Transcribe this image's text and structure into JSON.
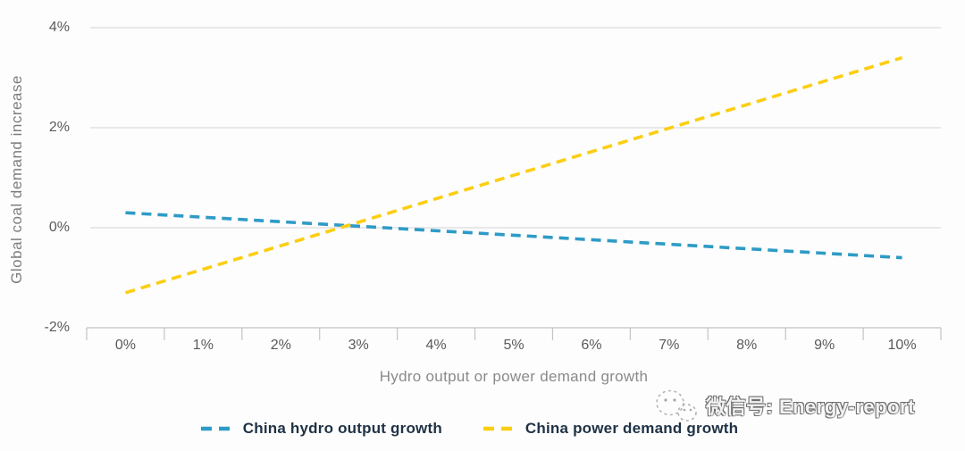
{
  "chart_data": {
    "type": "line",
    "title": "",
    "xlabel": "Hydro output or power demand growth",
    "ylabel": "Global coal demand increase",
    "x_ticks": [
      "0%",
      "1%",
      "2%",
      "3%",
      "4%",
      "5%",
      "6%",
      "7%",
      "8%",
      "9%",
      "10%"
    ],
    "y_ticks": [
      "4%",
      "2%",
      "0%",
      "-2%"
    ],
    "ylim": [
      -2,
      4
    ],
    "grid": "horizontal-light",
    "legend_position": "bottom-center",
    "series": [
      {
        "name": "China hydro output growth",
        "color": "#2E9BC6",
        "line_style": "dashed",
        "x": [
          0,
          1,
          2,
          3,
          4,
          5,
          6,
          7,
          8,
          9,
          10
        ],
        "values": [
          0.3,
          0.21,
          0.12,
          0.03,
          -0.06,
          -0.15,
          -0.24,
          -0.33,
          -0.42,
          -0.51,
          -0.6
        ]
      },
      {
        "name": "China power demand growth",
        "color": "#FCCE12",
        "line_style": "dashed",
        "x": [
          0,
          1,
          2,
          3,
          4,
          5,
          6,
          7,
          8,
          9,
          10
        ],
        "values": [
          -1.3,
          -0.83,
          -0.36,
          0.11,
          0.58,
          1.05,
          1.52,
          1.99,
          2.46,
          2.93,
          3.4
        ]
      }
    ]
  },
  "watermark": {
    "icon": "wechat-logo-icon",
    "label": "微信号: Energy-report"
  },
  "colors": {
    "background": "#FDFDFD",
    "gridline": "#DCDCDC",
    "axis": "#C4C4C4",
    "tick_label": "#5A5A5A",
    "axis_title": "#8A8A8A",
    "legend_text": "#1F3245"
  }
}
